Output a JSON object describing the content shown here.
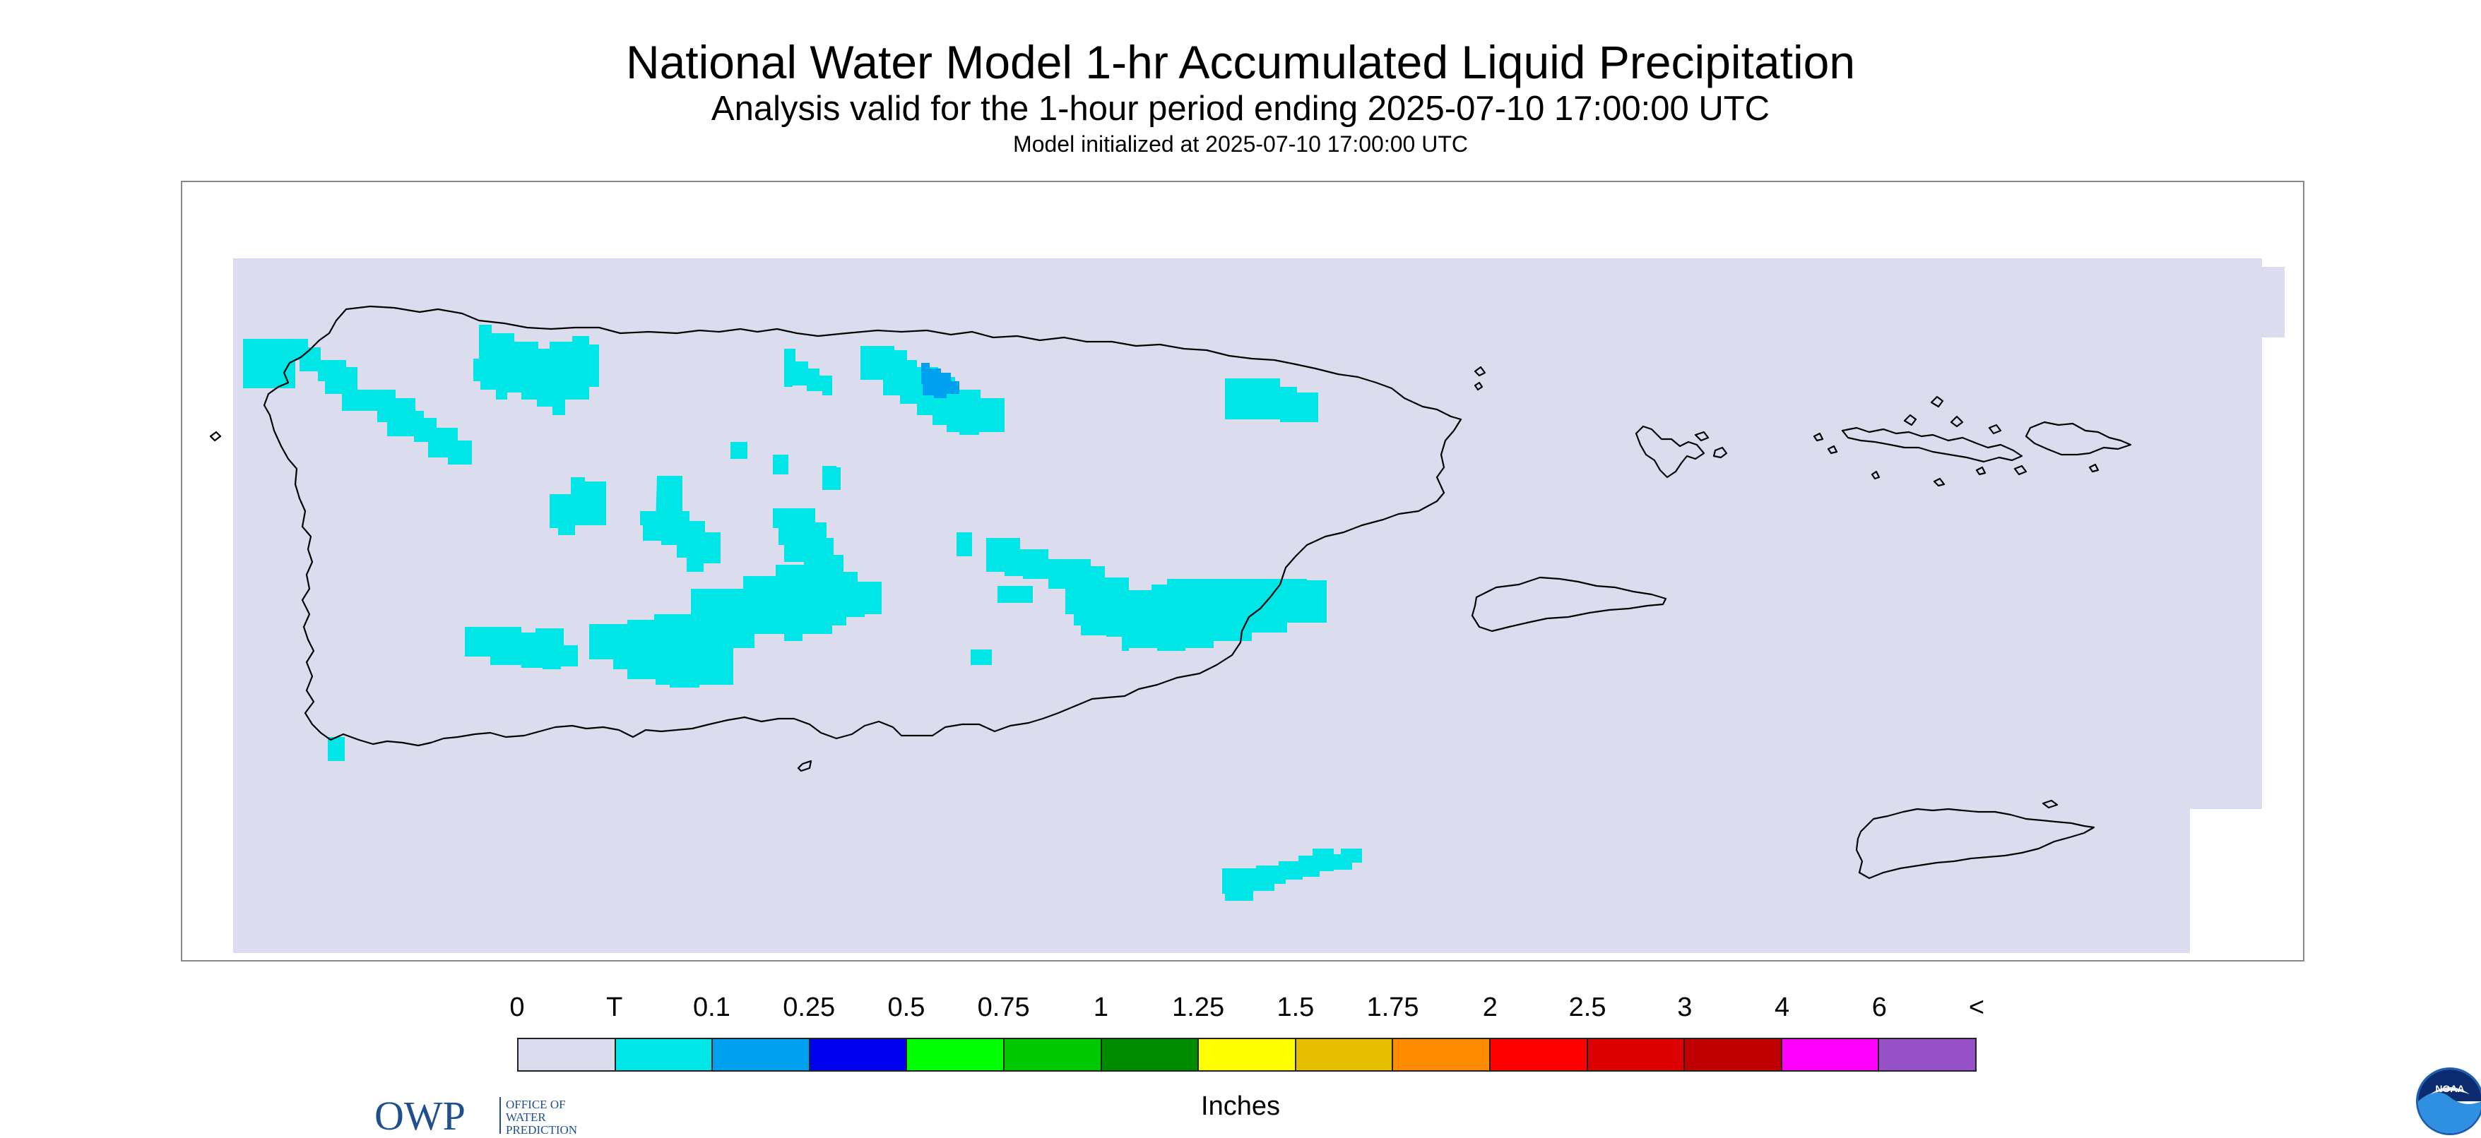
{
  "title": "National Water Model 1-hr Accumulated Liquid Precipitation",
  "subtitle": "Analysis valid for the 1-hour period ending 2025-07-10 17:00:00 UTC",
  "init_line": "Model initialized at 2025-07-10 17:00:00 UTC",
  "owp_logo": {
    "mark": "OWP",
    "lines": [
      "OFFICE OF",
      "WATER",
      "PREDICTION"
    ]
  },
  "noaa_logo": {
    "text": "NOAA"
  },
  "legend": {
    "units": "Inches",
    "labels": [
      "0",
      "T",
      "0.1",
      "0.25",
      "0.5",
      "0.75",
      "1",
      "1.25",
      "1.5",
      "1.75",
      "2",
      "2.5",
      "3",
      "4",
      "6",
      "<"
    ],
    "colors": [
      "#dcdcef",
      "#00e6e6",
      "#00a0f0",
      "#0000f0",
      "#00ff00",
      "#00c800",
      "#008c00",
      "#ffff00",
      "#e6be00",
      "#ff8c00",
      "#ff0000",
      "#dc0000",
      "#be0000",
      "#ff00ff",
      "#9650c8"
    ]
  },
  "colors": {
    "background": "#dcdcef",
    "trace": "#00e6e6",
    "light": "#00a0f0",
    "coast": "#000000"
  }
}
